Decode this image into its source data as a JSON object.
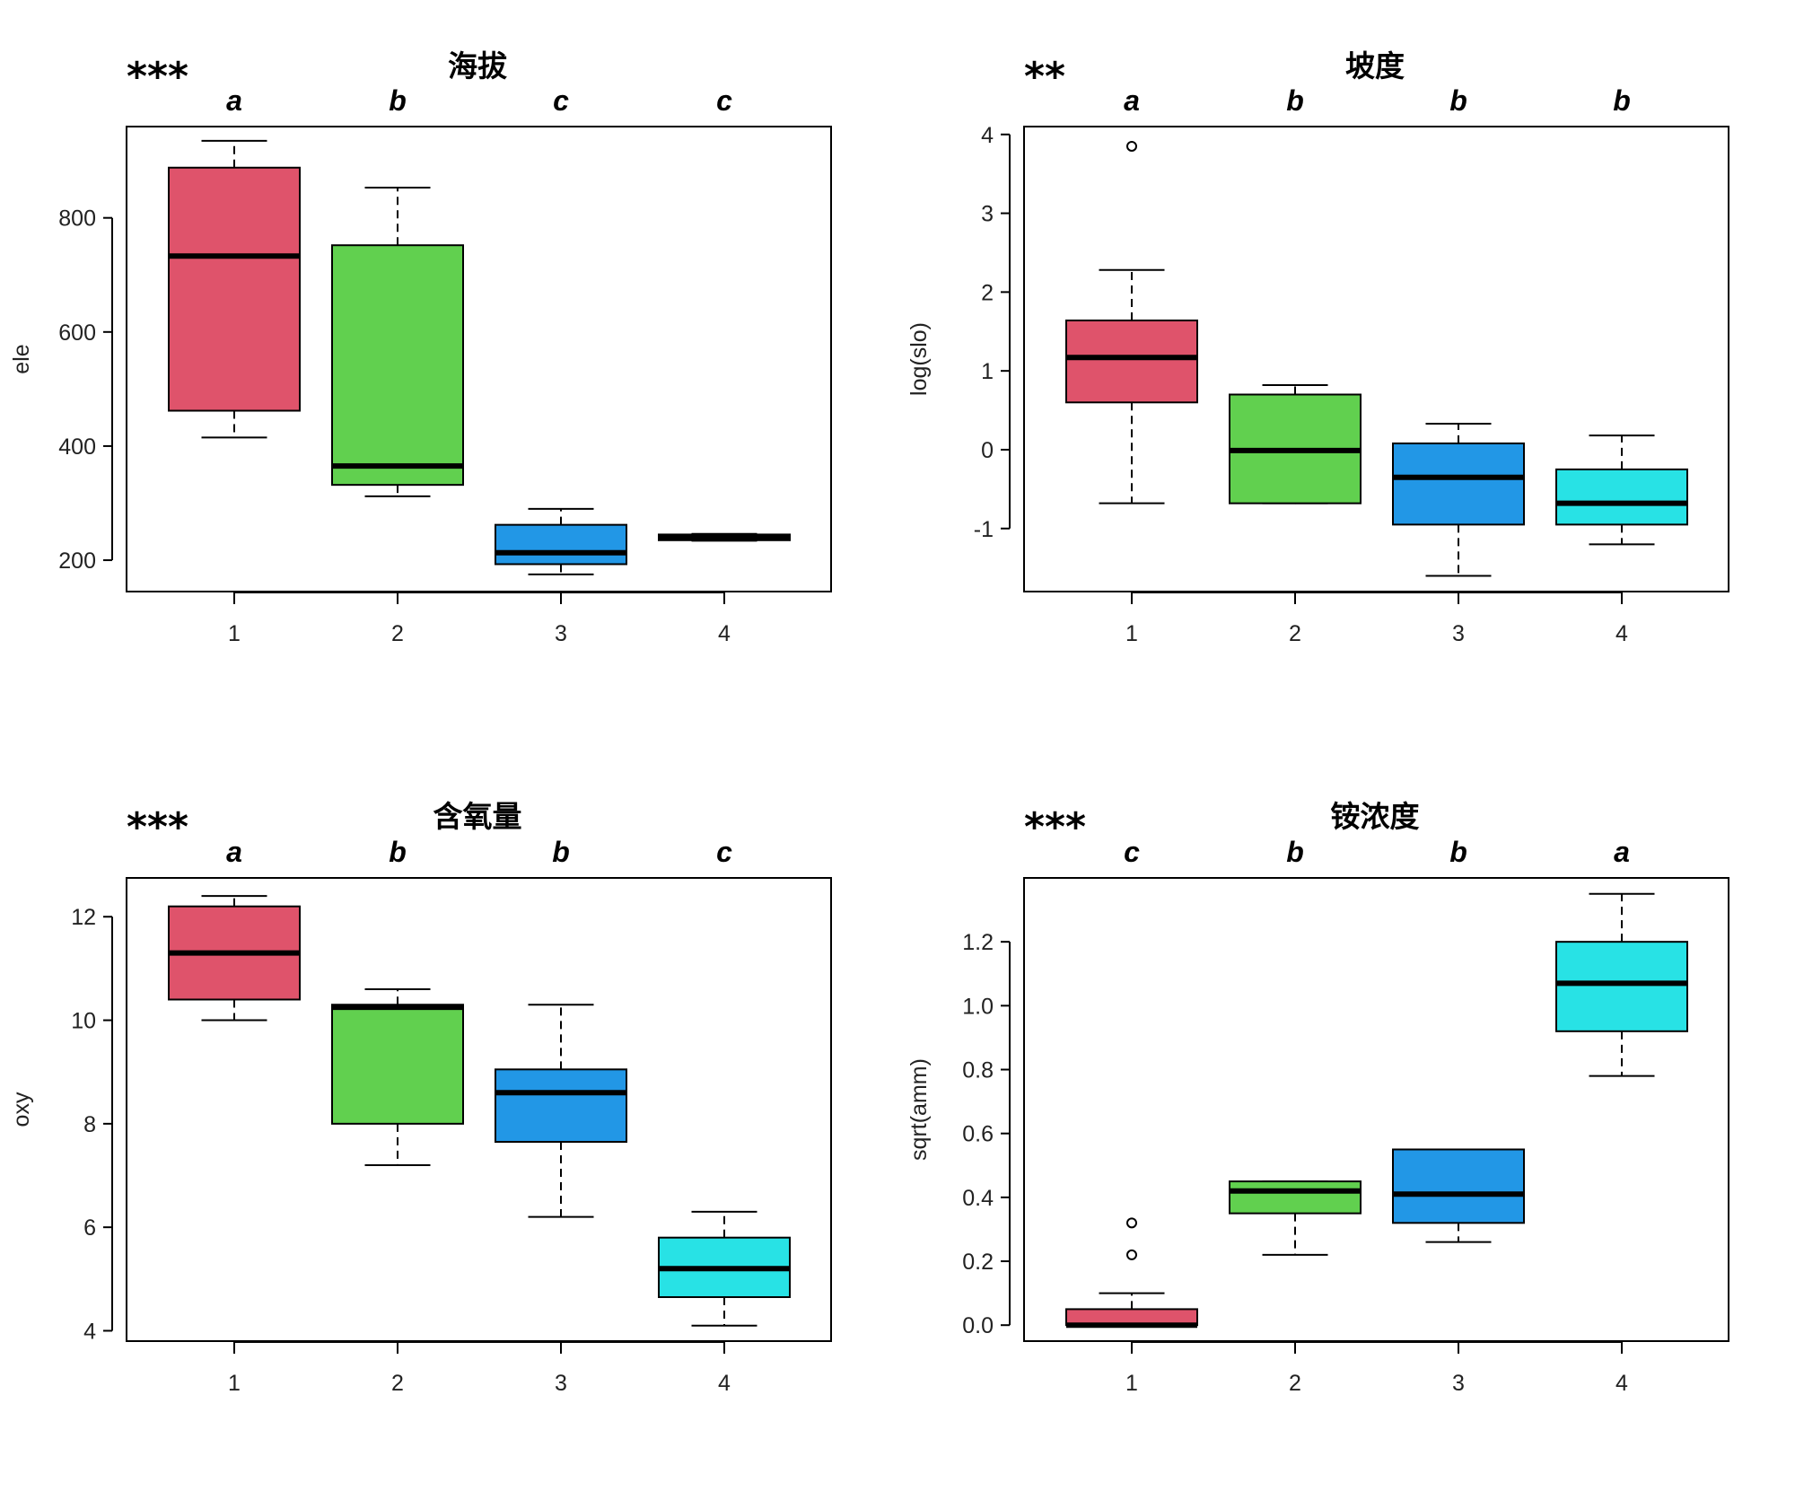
{
  "chart_data": [
    {
      "type": "boxplot",
      "title": "海拔",
      "significance": "***",
      "xlabel": "",
      "ylabel": "ele",
      "categories": [
        "1",
        "2",
        "3",
        "4"
      ],
      "group_letters": [
        "a",
        "b",
        "c",
        "c"
      ],
      "ylim": [
        145,
        960
      ],
      "yticks": [
        200,
        400,
        600,
        800
      ],
      "ytick_labels": [
        "200",
        "400",
        "600",
        "800"
      ],
      "boxes": [
        {
          "min": 415,
          "q1": 462,
          "median": 733,
          "q3": 888,
          "max": 935,
          "outliers": []
        },
        {
          "min": 312,
          "q1": 332,
          "median": 365,
          "q3": 752,
          "max": 853,
          "outliers": []
        },
        {
          "min": 175,
          "q1": 193,
          "median": 213,
          "q3": 262,
          "max": 290,
          "outliers": []
        },
        {
          "min": 234,
          "q1": 235,
          "median": 240,
          "q3": 245,
          "max": 246,
          "outliers": []
        }
      ],
      "colors": [
        "#DF536B",
        "#61D04F",
        "#2297E6",
        "#28E2E5"
      ]
    },
    {
      "type": "boxplot",
      "title": "坡度",
      "significance": "**",
      "xlabel": "",
      "ylabel": "log(slo)",
      "categories": [
        "1",
        "2",
        "3",
        "4"
      ],
      "group_letters": [
        "a",
        "b",
        "b",
        "b"
      ],
      "ylim": [
        -1.8,
        4.1
      ],
      "yticks": [
        -1,
        0,
        1,
        2,
        3,
        4
      ],
      "ytick_labels": [
        "-1",
        "0",
        "1",
        "2",
        "3",
        "4"
      ],
      "boxes": [
        {
          "min": -0.68,
          "q1": 0.6,
          "median": 1.17,
          "q3": 1.64,
          "max": 2.28,
          "outliers": [
            3.85
          ]
        },
        {
          "min": -0.68,
          "q1": -0.68,
          "median": -0.01,
          "q3": 0.7,
          "max": 0.82,
          "outliers": []
        },
        {
          "min": -1.6,
          "q1": -0.95,
          "median": -0.35,
          "q3": 0.08,
          "max": 0.33,
          "outliers": []
        },
        {
          "min": -1.2,
          "q1": -0.95,
          "median": -0.68,
          "q3": -0.25,
          "max": 0.18,
          "outliers": []
        }
      ],
      "colors": [
        "#DF536B",
        "#61D04F",
        "#2297E6",
        "#28E2E5"
      ]
    },
    {
      "type": "boxplot",
      "title": "含氧量",
      "significance": "***",
      "xlabel": "",
      "ylabel": "oxy",
      "categories": [
        "1",
        "2",
        "3",
        "4"
      ],
      "group_letters": [
        "a",
        "b",
        "b",
        "c"
      ],
      "ylim": [
        3.8,
        12.75
      ],
      "yticks": [
        4,
        6,
        8,
        10,
        12
      ],
      "ytick_labels": [
        "4",
        "6",
        "8",
        "10",
        "12"
      ],
      "boxes": [
        {
          "min": 10.0,
          "q1": 10.4,
          "median": 11.3,
          "q3": 12.2,
          "max": 12.4,
          "outliers": []
        },
        {
          "min": 7.2,
          "q1": 8.0,
          "median": 10.25,
          "q3": 10.3,
          "max": 10.6,
          "outliers": []
        },
        {
          "min": 6.2,
          "q1": 7.65,
          "median": 8.6,
          "q3": 9.05,
          "max": 10.3,
          "outliers": []
        },
        {
          "min": 4.1,
          "q1": 4.65,
          "median": 5.2,
          "q3": 5.8,
          "max": 6.3,
          "outliers": []
        }
      ],
      "colors": [
        "#DF536B",
        "#61D04F",
        "#2297E6",
        "#28E2E5"
      ]
    },
    {
      "type": "boxplot",
      "title": "铵浓度",
      "significance": "***",
      "xlabel": "",
      "ylabel": "sqrt(amm)",
      "categories": [
        "1",
        "2",
        "3",
        "4"
      ],
      "group_letters": [
        "c",
        "b",
        "b",
        "a"
      ],
      "ylim": [
        -0.05,
        1.4
      ],
      "yticks": [
        0.0,
        0.2,
        0.4,
        0.6,
        0.8,
        1.0,
        1.2
      ],
      "ytick_labels": [
        "0.0",
        "0.2",
        "0.4",
        "0.6",
        "0.8",
        "1.0",
        "1.2"
      ],
      "boxes": [
        {
          "min": 0.0,
          "q1": 0.0,
          "median": 0.0,
          "q3": 0.05,
          "max": 0.1,
          "outliers": [
            0.22,
            0.32
          ]
        },
        {
          "min": 0.22,
          "q1": 0.35,
          "median": 0.42,
          "q3": 0.45,
          "max": 0.45,
          "outliers": []
        },
        {
          "min": 0.26,
          "q1": 0.32,
          "median": 0.41,
          "q3": 0.55,
          "max": 0.55,
          "outliers": []
        },
        {
          "min": 0.78,
          "q1": 0.92,
          "median": 1.07,
          "q3": 1.2,
          "max": 1.35,
          "outliers": []
        }
      ],
      "colors": [
        "#DF536B",
        "#61D04F",
        "#2297E6",
        "#28E2E5"
      ]
    }
  ]
}
